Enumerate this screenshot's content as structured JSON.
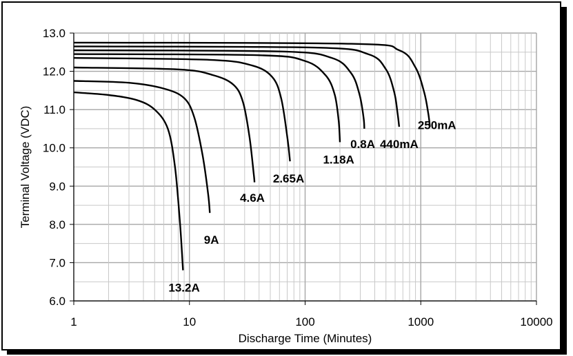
{
  "chart_data": {
    "type": "line",
    "title": "",
    "xlabel": "Discharge Time (Minutes)",
    "ylabel": "Terminal Voltage (VDC)",
    "xscale": "log",
    "xlim": [
      1,
      10000
    ],
    "ylim": [
      6.0,
      13.0
    ],
    "grid": true,
    "x_ticks": [
      {
        "value": 1,
        "label": "1"
      },
      {
        "value": 10,
        "label": "10"
      },
      {
        "value": 100,
        "label": "100"
      },
      {
        "value": 1000,
        "label": "1000"
      },
      {
        "value": 10000,
        "label": "10000"
      }
    ],
    "y_ticks": [
      {
        "value": 6,
        "label": "6.0"
      },
      {
        "value": 7,
        "label": "7.0"
      },
      {
        "value": 8,
        "label": "8.0"
      },
      {
        "value": 9,
        "label": "9.0"
      },
      {
        "value": 10,
        "label": "10.0"
      },
      {
        "value": 11,
        "label": "11.0"
      },
      {
        "value": 12,
        "label": "12.0"
      },
      {
        "value": 13,
        "label": "13.0"
      }
    ],
    "series": [
      {
        "name": "13.2A",
        "points": [
          [
            1,
            11.45
          ],
          [
            2,
            11.38
          ],
          [
            3.5,
            11.25
          ],
          [
            5,
            11.0
          ],
          [
            6.5,
            10.5
          ],
          [
            7.5,
            9.5
          ],
          [
            8.3,
            8.0
          ],
          [
            8.8,
            6.8
          ]
        ]
      },
      {
        "name": "9A",
        "points": [
          [
            1,
            11.75
          ],
          [
            3,
            11.7
          ],
          [
            6,
            11.55
          ],
          [
            9,
            11.3
          ],
          [
            11,
            10.8
          ],
          [
            13,
            9.8
          ],
          [
            14.5,
            8.8
          ],
          [
            15,
            8.3
          ]
        ]
      },
      {
        "name": "4.6A",
        "points": [
          [
            1,
            12.1
          ],
          [
            8,
            12.05
          ],
          [
            16,
            11.9
          ],
          [
            24,
            11.65
          ],
          [
            29,
            11.2
          ],
          [
            33,
            10.3
          ],
          [
            36,
            9.3
          ],
          [
            36.5,
            9.1
          ]
        ]
      },
      {
        "name": "2.65A",
        "points": [
          [
            1,
            12.35
          ],
          [
            15,
            12.3
          ],
          [
            35,
            12.15
          ],
          [
            52,
            11.85
          ],
          [
            62,
            11.3
          ],
          [
            70,
            10.3
          ],
          [
            74,
            9.65
          ]
        ]
      },
      {
        "name": "1.18A",
        "points": [
          [
            1,
            12.45
          ],
          [
            40,
            12.42
          ],
          [
            100,
            12.27
          ],
          [
            150,
            11.9
          ],
          [
            180,
            11.4
          ],
          [
            195,
            10.7
          ],
          [
            200,
            10.15
          ]
        ]
      },
      {
        "name": "0.8A",
        "points": [
          [
            1,
            12.55
          ],
          [
            60,
            12.52
          ],
          [
            170,
            12.35
          ],
          [
            250,
            11.95
          ],
          [
            295,
            11.4
          ],
          [
            320,
            10.8
          ],
          [
            325,
            10.5
          ]
        ]
      },
      {
        "name": "440mA",
        "points": [
          [
            1,
            12.65
          ],
          [
            120,
            12.62
          ],
          [
            350,
            12.45
          ],
          [
            500,
            12.05
          ],
          [
            590,
            11.45
          ],
          [
            630,
            10.9
          ],
          [
            650,
            10.55
          ]
        ]
      },
      {
        "name": "250mA",
        "points": [
          [
            1,
            12.75
          ],
          [
            250,
            12.72
          ],
          [
            650,
            12.55
          ],
          [
            900,
            12.1
          ],
          [
            1070,
            11.45
          ],
          [
            1160,
            10.9
          ],
          [
            1200,
            10.55
          ]
        ]
      }
    ],
    "annotations": [
      {
        "text": "13.2A",
        "x": 9.0,
        "y": 6.35
      },
      {
        "text": "9A",
        "x": 15.5,
        "y": 7.6
      },
      {
        "text": "4.6A",
        "x": 35.0,
        "y": 8.7
      },
      {
        "text": "2.65A",
        "x": 72.0,
        "y": 9.2
      },
      {
        "text": "1.18A",
        "x": 195.0,
        "y": 9.7
      },
      {
        "text": "0.8A",
        "x": 315.0,
        "y": 10.1
      },
      {
        "text": "440mA",
        "x": 650.0,
        "y": 10.1
      },
      {
        "text": "250mA",
        "x": 1380.0,
        "y": 10.6
      }
    ]
  }
}
